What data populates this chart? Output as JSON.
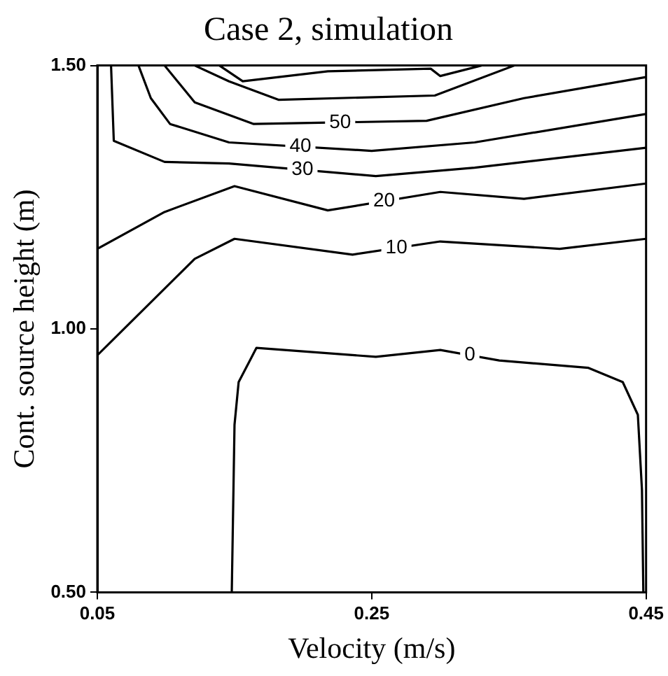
{
  "chart_data": {
    "type": "line",
    "title": "Case 2, simulation",
    "xlabel": "Velocity (m/s)",
    "ylabel": "Cont. source height (m)",
    "xlim": [
      0.05,
      0.45
    ],
    "xticks": [
      0.05,
      0.25,
      0.45
    ],
    "ylim": [
      0.5,
      1.5
    ],
    "yticks": [
      {
        "value": 0.5,
        "label": "0.50"
      },
      {
        "value": 1.0,
        "label": "1.00"
      },
      {
        "value": 1.5,
        "label": "1.50"
      }
    ],
    "grid": false,
    "legend": false,
    "marker": "none",
    "line_style": "solid",
    "series": [
      {
        "name": "0",
        "color": "#000000",
        "x": [
          0.148,
          0.15,
          0.153,
          0.166,
          0.253,
          0.3,
          0.343,
          0.408,
          0.433,
          0.444,
          0.447,
          0.448
        ],
        "values": [
          0.5,
          0.818,
          0.899,
          0.964,
          0.947,
          0.96,
          0.94,
          0.926,
          0.899,
          0.837,
          0.694,
          0.5
        ]
      },
      {
        "name": "10",
        "color": "#000000",
        "x": [
          0.05,
          0.121,
          0.15,
          0.236,
          0.3,
          0.387,
          0.45
        ],
        "values": [
          0.95,
          1.133,
          1.171,
          1.141,
          1.166,
          1.152,
          1.171
        ]
      },
      {
        "name": "20",
        "color": "#000000",
        "x": [
          0.05,
          0.099,
          0.15,
          0.218,
          0.3,
          0.361,
          0.45
        ],
        "values": [
          1.152,
          1.222,
          1.271,
          1.225,
          1.26,
          1.247,
          1.276
        ]
      },
      {
        "name": "30",
        "color": "#000000",
        "x": [
          0.06,
          0.062,
          0.099,
          0.146,
          0.253,
          0.325,
          0.45
        ],
        "values": [
          1.5,
          1.357,
          1.317,
          1.314,
          1.29,
          1.306,
          1.344
        ]
      },
      {
        "name": "40",
        "color": "#000000",
        "x": [
          0.08,
          0.089,
          0.103,
          0.146,
          0.25,
          0.325,
          0.45
        ],
        "values": [
          1.5,
          1.438,
          1.389,
          1.354,
          1.338,
          1.354,
          1.408
        ]
      },
      {
        "name": "50",
        "color": "#000000",
        "x": [
          0.099,
          0.121,
          0.164,
          0.29,
          0.361,
          0.45
        ],
        "values": [
          1.5,
          1.43,
          1.389,
          1.395,
          1.438,
          1.478
        ]
      },
      {
        "color": "#000000",
        "x": [
          0.121,
          0.146,
          0.182,
          0.296,
          0.354
        ],
        "values": [
          1.5,
          1.47,
          1.435,
          1.443,
          1.5
        ]
      },
      {
        "color": "#000000",
        "x": [
          0.139,
          0.156,
          0.218,
          0.293,
          0.3,
          0.33
        ],
        "values": [
          1.5,
          1.47,
          1.489,
          1.494,
          1.48,
          1.5
        ]
      }
    ]
  }
}
